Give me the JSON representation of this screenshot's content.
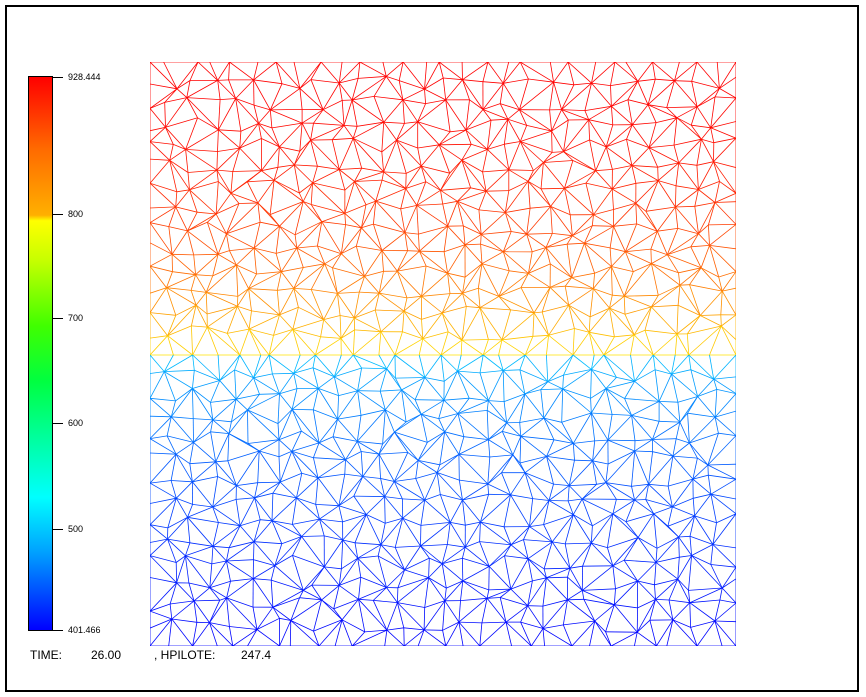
{
  "colorbar": {
    "max_label": "928.444",
    "min_label": "401.466",
    "ticks": [
      "800",
      "700",
      "600",
      "500"
    ],
    "top_color": "#ff0000",
    "bottom_color": "#0000ff"
  },
  "footer": {
    "time_label": "TIME:",
    "time_value": "26.00",
    "hpilote_label": ", HPILOTE:",
    "hpilote_value": "247.4"
  },
  "mesh": {
    "description_colors": {
      "upper_top": "#ff0000",
      "upper_bottom": "#ffe000",
      "lower_top": "#00d8ff",
      "lower_bottom": "#0000ff"
    }
  }
}
